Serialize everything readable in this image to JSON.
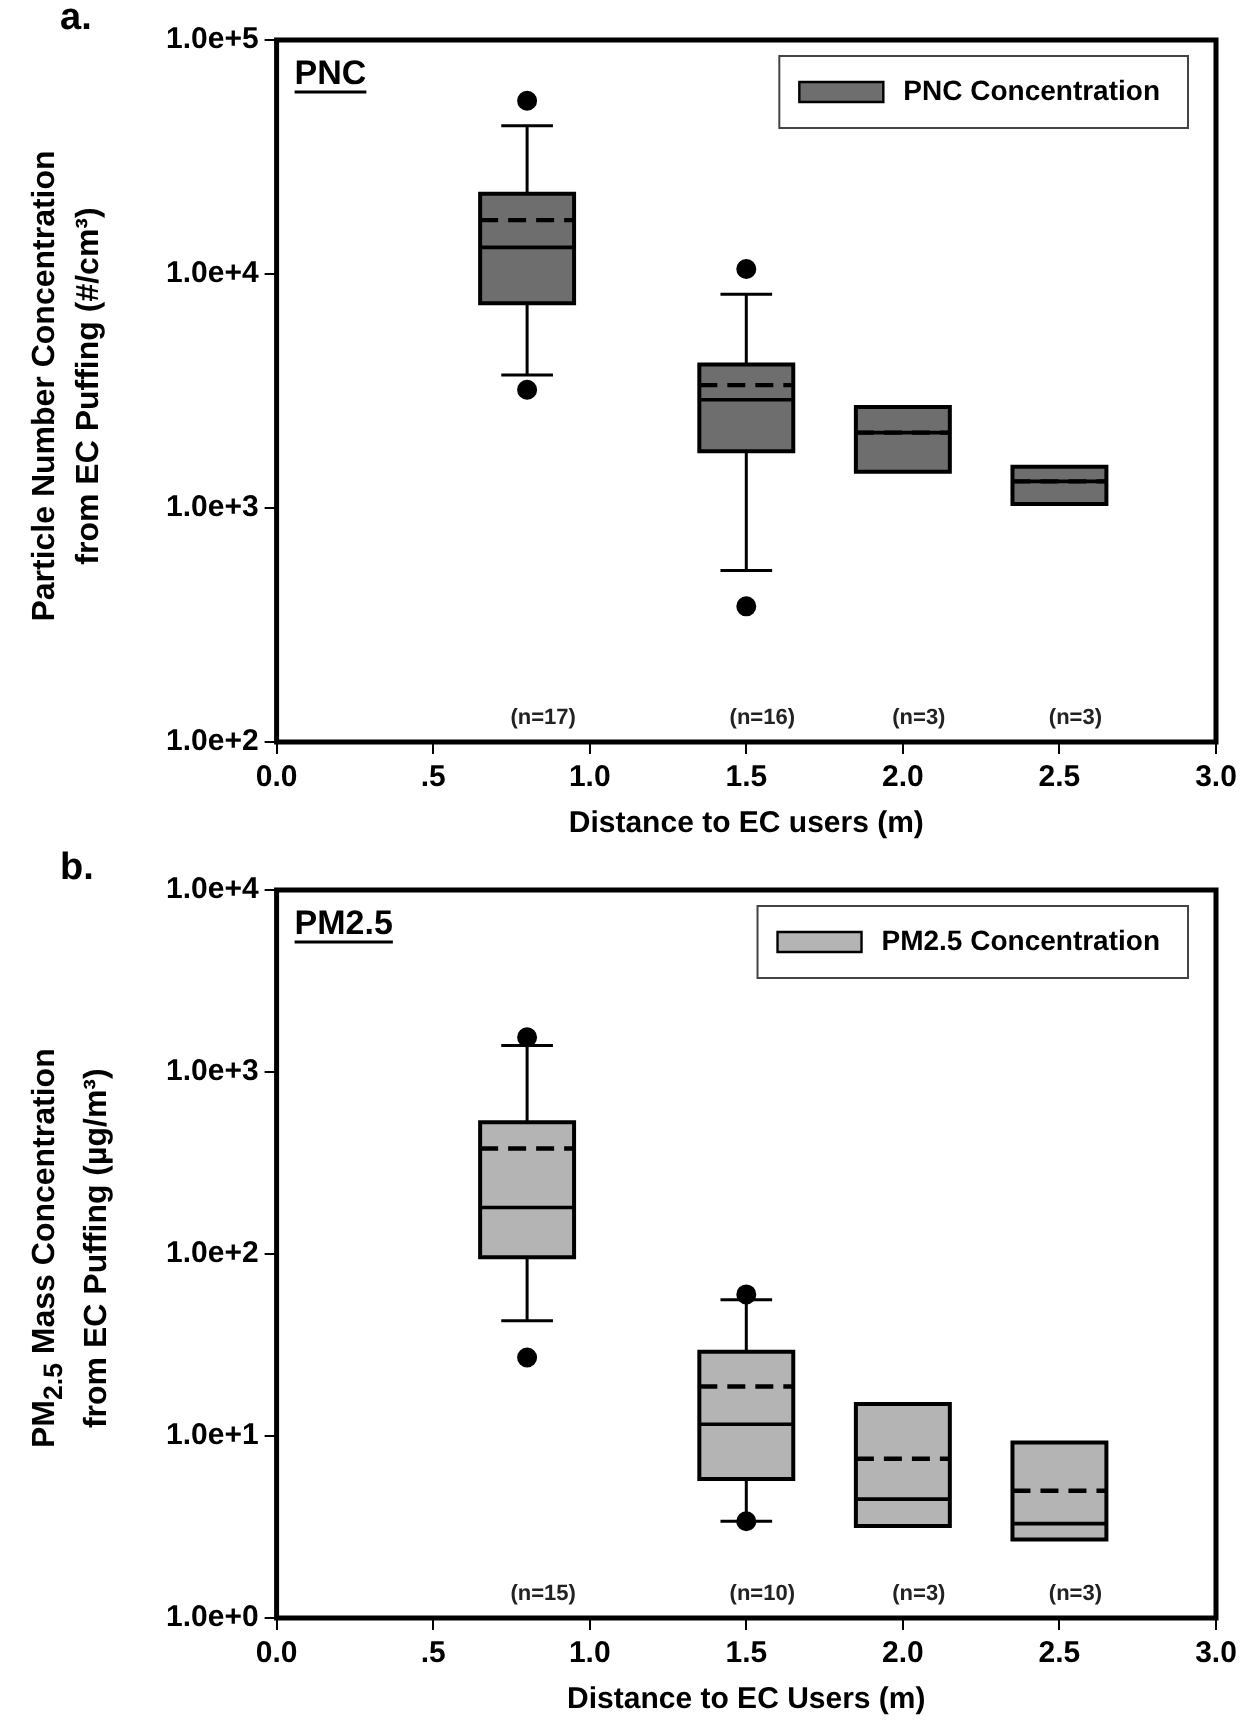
{
  "chart_data": [
    {
      "type": "box",
      "title": "PNC",
      "xlabel": "Distance to EC users (m)",
      "ylabel": "Particle Number Concentration\nfrom EC Puffing (#/cm³)",
      "x": [
        0.8,
        1.5,
        2.0,
        2.5
      ],
      "series": [
        {
          "name": "PNC Concentration",
          "color": "#6e6e6e",
          "boxes": [
            {
              "low": 3700,
              "q1": 7500,
              "median": 13000,
              "q3": 22000,
              "high": 43000,
              "mean": 17000,
              "outliers": [
                55000,
                3200
              ]
            },
            {
              "low": 540,
              "q1": 1750,
              "median": 2900,
              "q3": 4100,
              "high": 8200,
              "mean": 3350,
              "outliers": [
                10500,
                380
              ]
            },
            {
              "low": 1430,
              "q1": 1430,
              "median": 2100,
              "q3": 2700,
              "high": 2700,
              "mean": 2100
            },
            {
              "low": 1040,
              "q1": 1040,
              "median": 1300,
              "q3": 1500,
              "high": 1500,
              "mean": 1300
            }
          ]
        }
      ],
      "xlim": [
        0,
        3
      ],
      "xticks": [
        {
          "value": 0,
          "label": "0.0"
        },
        {
          "value": 0.5,
          "label": ".5"
        },
        {
          "value": 1,
          "label": "1.0"
        },
        {
          "value": 1.5,
          "label": "1.5"
        },
        {
          "value": 2,
          "label": "2.0"
        },
        {
          "value": 2.5,
          "label": "2.5"
        },
        {
          "value": 3,
          "label": "3.0"
        }
      ],
      "ylim": [
        100,
        100000
      ],
      "yticks": [
        {
          "value": 100,
          "label": "1.0e+2"
        },
        {
          "value": 1000,
          "label": "1.0e+3"
        },
        {
          "value": 10000,
          "label": "1.0e+4"
        },
        {
          "value": 100000,
          "label": "1.0e+5"
        }
      ],
      "log": "y",
      "grid": false,
      "legend": "top right",
      "annotations": [
        "a.",
        "(n=17)",
        "(n=16)",
        "(n=3)",
        "(n=3)"
      ]
    },
    {
      "type": "box",
      "title": "PM2.5",
      "xlabel": "Distance to EC Users (m)",
      "ylabel": "PM$_{2.5}$ Mass Concentration\nfrom EC Puffing (µg/m³)",
      "x": [
        0.8,
        1.5,
        2.0,
        2.5
      ],
      "series": [
        {
          "name": "PM2.5 Concentration",
          "color": "#b4b4b4",
          "boxes": [
            {
              "low": 43,
              "q1": 96,
              "median": 180,
              "q3": 530,
              "high": 1400,
              "mean": 380,
              "outliers": [
                1550,
                27
              ]
            },
            {
              "low": 3.4,
              "q1": 5.8,
              "median": 11.6,
              "q3": 29,
              "high": 56,
              "mean": 18.7,
              "outliers": [
                60,
                3.4
              ]
            },
            {
              "low": 3.2,
              "q1": 3.2,
              "median": 4.5,
              "q3": 15,
              "high": 15,
              "mean": 7.5
            },
            {
              "low": 2.7,
              "q1": 2.7,
              "median": 3.3,
              "q3": 9.2,
              "high": 9.2,
              "mean": 5.0
            }
          ]
        }
      ],
      "xlim": [
        0,
        3
      ],
      "xticks": [
        {
          "value": 0,
          "label": "0.0"
        },
        {
          "value": 0.5,
          "label": ".5"
        },
        {
          "value": 1,
          "label": "1.0"
        },
        {
          "value": 1.5,
          "label": "1.5"
        },
        {
          "value": 2,
          "label": "2.0"
        },
        {
          "value": 2.5,
          "label": "2.5"
        },
        {
          "value": 3,
          "label": "3.0"
        }
      ],
      "ylim": [
        1,
        10000
      ],
      "yticks": [
        {
          "value": 1,
          "label": "1.0e+0"
        },
        {
          "value": 10,
          "label": "1.0e+1"
        },
        {
          "value": 100,
          "label": "1.0e+2"
        },
        {
          "value": 1000,
          "label": "1.0e+3"
        },
        {
          "value": 10000,
          "label": "1.0e+4"
        }
      ],
      "log": "y",
      "grid": false,
      "legend": "top right",
      "annotations": [
        "b.",
        "(n=15)",
        "(n=10)",
        "(n=3)",
        "(n=3)"
      ]
    }
  ]
}
